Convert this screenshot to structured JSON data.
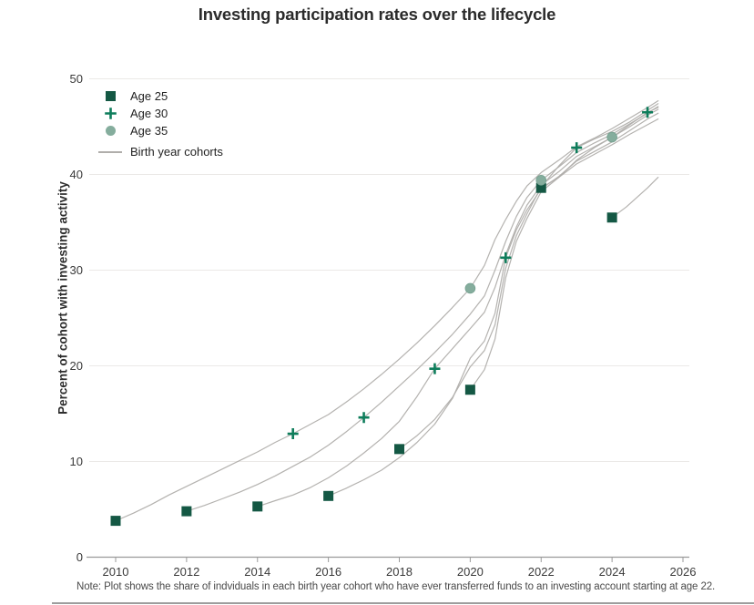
{
  "title": "Investing participation rates over the lifecycle",
  "y_axis_label": "Percent of cohort with investing activity",
  "note": "Note: Plot shows the share of indviduals in each birth year cohort who have ever transferred funds to an investing account starting at age 22.",
  "legend": {
    "items": [
      {
        "label": "Age 25",
        "marker": "square-icon"
      },
      {
        "label": "Age 30",
        "marker": "plus-icon"
      },
      {
        "label": "Age 35",
        "marker": "circle-icon"
      },
      {
        "label": "Birth year cohorts",
        "marker": "line-icon"
      }
    ]
  },
  "colors": {
    "age25": "#145844",
    "age30": "#0e7d5b",
    "age35": "#85ad9d",
    "age35_rim": "#74a08f",
    "cohort_line": "#b0aeab",
    "grid": "#ebe9e7",
    "axis": "#9a9a9a",
    "tick_text": "#3a3a3a",
    "title_text": "#2b2b2b",
    "note_text": "#4a4a4a"
  },
  "chart_data": {
    "type": "line",
    "title": "Investing participation rates over the lifecycle",
    "xlabel": "",
    "ylabel": "Percent of cohort with investing activity",
    "x_ticks": [
      2010,
      2012,
      2014,
      2016,
      2018,
      2020,
      2022,
      2024,
      2026
    ],
    "y_ticks": [
      0,
      10,
      20,
      30,
      40,
      50
    ],
    "xlim": [
      2009.2,
      2026.3
    ],
    "ylim": [
      0,
      50
    ],
    "grid": "horizontal-light",
    "legend_position": "top-left",
    "series": [
      {
        "name": "cohort-age25-in-2010",
        "points": [
          [
            2010,
            3.8
          ],
          [
            2010.5,
            4.6
          ],
          [
            2011,
            5.5
          ],
          [
            2011.5,
            6.5
          ],
          [
            2012,
            7.4
          ],
          [
            2012.5,
            8.3
          ],
          [
            2013,
            9.2
          ],
          [
            2013.5,
            10.1
          ],
          [
            2014,
            11.0
          ],
          [
            2014.5,
            12.0
          ],
          [
            2015,
            12.9
          ],
          [
            2015.5,
            13.9
          ],
          [
            2016,
            14.9
          ],
          [
            2016.5,
            16.2
          ],
          [
            2017,
            17.6
          ],
          [
            2017.5,
            19.1
          ],
          [
            2018,
            20.7
          ],
          [
            2018.5,
            22.4
          ],
          [
            2019,
            24.2
          ],
          [
            2019.5,
            26.1
          ],
          [
            2020,
            28.1
          ],
          [
            2020.4,
            30.5
          ],
          [
            2020.7,
            33.2
          ],
          [
            2021,
            35.3
          ],
          [
            2021.3,
            37.2
          ],
          [
            2021.6,
            38.8
          ],
          [
            2022,
            40.2
          ],
          [
            2022.5,
            41.5
          ],
          [
            2023,
            42.9
          ],
          [
            2023.5,
            43.8
          ],
          [
            2024,
            44.8
          ],
          [
            2024.5,
            45.9
          ],
          [
            2025,
            47.0
          ],
          [
            2025.3,
            47.7
          ]
        ]
      },
      {
        "name": "cohort-age25-in-2012",
        "points": [
          [
            2012,
            4.8
          ],
          [
            2012.5,
            5.4
          ],
          [
            2013,
            6.1
          ],
          [
            2013.5,
            6.8
          ],
          [
            2014,
            7.6
          ],
          [
            2014.5,
            8.5
          ],
          [
            2015,
            9.5
          ],
          [
            2015.5,
            10.5
          ],
          [
            2016,
            11.7
          ],
          [
            2016.5,
            13.1
          ],
          [
            2017,
            14.6
          ],
          [
            2017.5,
            16.2
          ],
          [
            2018,
            17.9
          ],
          [
            2018.5,
            19.6
          ],
          [
            2019,
            21.4
          ],
          [
            2019.5,
            23.3
          ],
          [
            2020,
            25.4
          ],
          [
            2020.4,
            27.3
          ],
          [
            2020.7,
            30.0
          ],
          [
            2021,
            33.0
          ],
          [
            2021.3,
            35.6
          ],
          [
            2021.6,
            37.6
          ],
          [
            2022,
            39.4
          ],
          [
            2022.5,
            40.8
          ],
          [
            2023,
            42.3
          ],
          [
            2023.5,
            43.3
          ],
          [
            2024,
            44.2
          ],
          [
            2024.5,
            45.3
          ],
          [
            2025,
            46.4
          ],
          [
            2025.3,
            47.1
          ]
        ]
      },
      {
        "name": "cohort-age25-in-2014",
        "points": [
          [
            2014,
            5.3
          ],
          [
            2014.5,
            5.9
          ],
          [
            2015,
            6.5
          ],
          [
            2015.5,
            7.3
          ],
          [
            2016,
            8.3
          ],
          [
            2016.5,
            9.5
          ],
          [
            2017,
            10.9
          ],
          [
            2017.5,
            12.4
          ],
          [
            2018,
            14.2
          ],
          [
            2018.5,
            16.8
          ],
          [
            2019,
            19.7
          ],
          [
            2019.5,
            21.8
          ],
          [
            2020,
            23.9
          ],
          [
            2020.4,
            25.6
          ],
          [
            2020.7,
            28.2
          ],
          [
            2021,
            31.6
          ],
          [
            2021.3,
            34.5
          ],
          [
            2021.6,
            36.8
          ],
          [
            2022,
            38.9
          ],
          [
            2022.5,
            40.3
          ],
          [
            2023,
            41.9
          ],
          [
            2023.5,
            42.9
          ],
          [
            2024,
            43.9
          ],
          [
            2024.5,
            45.0
          ],
          [
            2025,
            46.2
          ],
          [
            2025.3,
            46.8
          ]
        ]
      },
      {
        "name": "cohort-age25-in-2016",
        "points": [
          [
            2016,
            6.4
          ],
          [
            2016.5,
            7.2
          ],
          [
            2017,
            8.1
          ],
          [
            2017.5,
            9.1
          ],
          [
            2018,
            10.4
          ],
          [
            2018.5,
            12.0
          ],
          [
            2019,
            13.9
          ],
          [
            2019.5,
            16.6
          ],
          [
            2020,
            20.8
          ],
          [
            2020.4,
            22.6
          ],
          [
            2020.7,
            25.5
          ],
          [
            2021,
            31.3
          ],
          [
            2021.3,
            34.2
          ],
          [
            2021.6,
            36.3
          ],
          [
            2022,
            38.5
          ],
          [
            2022.5,
            39.8
          ],
          [
            2023,
            41.4
          ],
          [
            2023.5,
            42.4
          ],
          [
            2024,
            43.4
          ],
          [
            2024.5,
            44.6
          ],
          [
            2025,
            45.8
          ],
          [
            2025.3,
            46.4
          ]
        ]
      },
      {
        "name": "cohort-age25-in-2018",
        "points": [
          [
            2018,
            11.3
          ],
          [
            2018.5,
            12.7
          ],
          [
            2019,
            14.4
          ],
          [
            2019.5,
            16.7
          ],
          [
            2020,
            19.9
          ],
          [
            2020.4,
            21.6
          ],
          [
            2020.7,
            24.3
          ],
          [
            2021,
            30.2
          ],
          [
            2021.3,
            33.6
          ],
          [
            2021.6,
            35.9
          ],
          [
            2022,
            38.7
          ],
          [
            2022.5,
            40.9
          ],
          [
            2023,
            42.8
          ],
          [
            2023.5,
            43.7
          ],
          [
            2024,
            44.5
          ],
          [
            2024.5,
            45.5
          ],
          [
            2025,
            46.7
          ],
          [
            2025.3,
            47.4
          ]
        ]
      },
      {
        "name": "cohort-age25-in-2020",
        "points": [
          [
            2020,
            17.5
          ],
          [
            2020.4,
            19.6
          ],
          [
            2020.7,
            22.8
          ],
          [
            2021,
            29.2
          ],
          [
            2021.3,
            33.0
          ],
          [
            2021.6,
            35.4
          ],
          [
            2022,
            38.2
          ],
          [
            2022.5,
            39.7
          ],
          [
            2023,
            41.5
          ],
          [
            2023.5,
            42.8
          ],
          [
            2024,
            43.9
          ],
          [
            2024.5,
            45.2
          ],
          [
            2025,
            46.5
          ],
          [
            2025.3,
            47.0
          ]
        ]
      },
      {
        "name": "cohort-age25-in-2022",
        "points": [
          [
            2022,
            38.6
          ],
          [
            2022.5,
            39.7
          ],
          [
            2023,
            41.1
          ],
          [
            2023.5,
            42.1
          ],
          [
            2024,
            43.1
          ],
          [
            2024.5,
            44.2
          ],
          [
            2025,
            45.2
          ],
          [
            2025.3,
            45.8
          ]
        ]
      },
      {
        "name": "cohort-age25-in-2024",
        "points": [
          [
            2024,
            35.5
          ],
          [
            2024.4,
            36.6
          ],
          [
            2024.7,
            37.6
          ],
          [
            2025,
            38.6
          ],
          [
            2025.3,
            39.7
          ]
        ]
      }
    ],
    "markers": [
      {
        "name": "Age 25",
        "shape": "square",
        "color_key": "age25",
        "points": [
          [
            2010,
            3.8
          ],
          [
            2012,
            4.8
          ],
          [
            2014,
            5.3
          ],
          [
            2016,
            6.4
          ],
          [
            2018,
            11.3
          ],
          [
            2020,
            17.5
          ],
          [
            2022,
            38.6
          ],
          [
            2024,
            35.5
          ]
        ]
      },
      {
        "name": "Age 30",
        "shape": "plus",
        "color_key": "age30",
        "points": [
          [
            2015,
            12.9
          ],
          [
            2017,
            14.6
          ],
          [
            2019,
            19.7
          ],
          [
            2021,
            31.3
          ],
          [
            2023,
            42.8
          ],
          [
            2025,
            46.5
          ]
        ]
      },
      {
        "name": "Age 35",
        "shape": "circle",
        "color_key": "age35",
        "points": [
          [
            2020,
            28.1
          ],
          [
            2022,
            39.4
          ],
          [
            2024,
            43.9
          ]
        ]
      }
    ]
  }
}
